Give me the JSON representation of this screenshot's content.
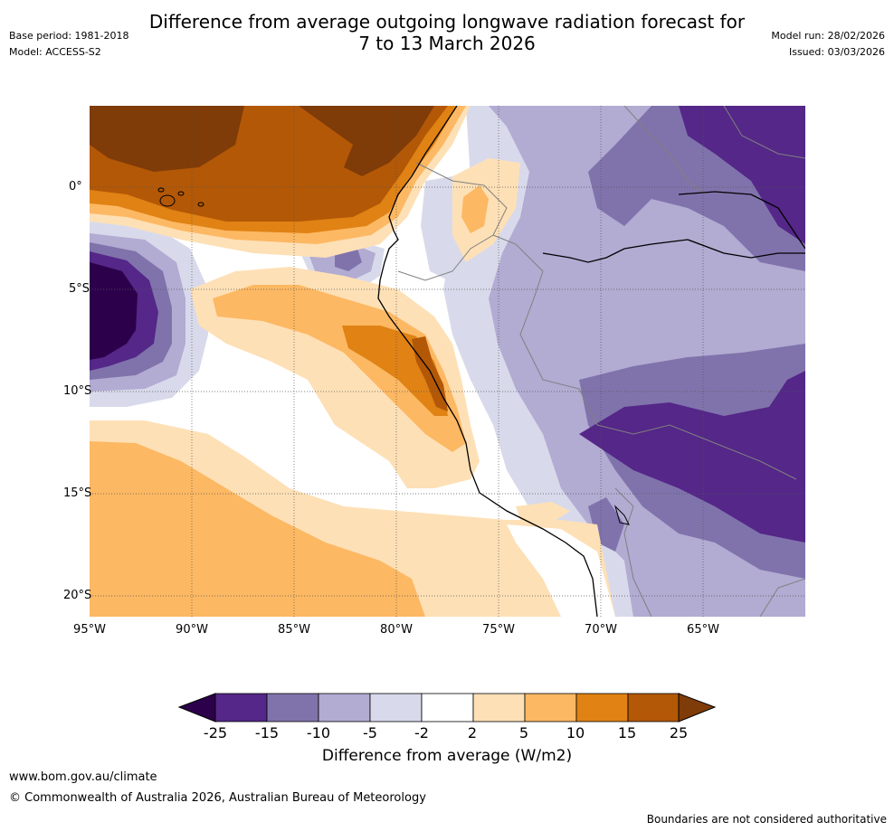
{
  "header": {
    "title_line1": "Difference from average outgoing longwave radiation forecast for",
    "title_line2": "7 to 13 March 2026",
    "base_period": "Base period: 1981-2018",
    "model": "Model: ACCESS-S2",
    "model_run": "Model run: 28/02/2026",
    "issued": "Issued: 03/03/2026"
  },
  "map": {
    "lat_labels": [
      "0°",
      "5°S",
      "10°S",
      "15°S",
      "20°S"
    ],
    "lon_labels": [
      "95°W",
      "90°W",
      "85°W",
      "80°W",
      "75°W",
      "70°W",
      "65°W"
    ]
  },
  "colorbar": {
    "labels": [
      "-25",
      "-15",
      "-10",
      "-5",
      "-2",
      "2",
      "5",
      "10",
      "15",
      "25"
    ],
    "colors": [
      "#2d004b",
      "#542788",
      "#8073ac",
      "#b2abd2",
      "#d8daeb",
      "#ffffff",
      "#fee0b6",
      "#fdb863",
      "#e08214",
      "#b35806",
      "#7f3b08"
    ],
    "title": "Difference from average (W/m2)"
  },
  "footer": {
    "website": "www.bom.gov.au/climate",
    "copyright": "© Commonwealth of Australia 2026, Australian Bureau of Meteorology",
    "disclaimer": "Boundaries are not considered authoritative"
  }
}
